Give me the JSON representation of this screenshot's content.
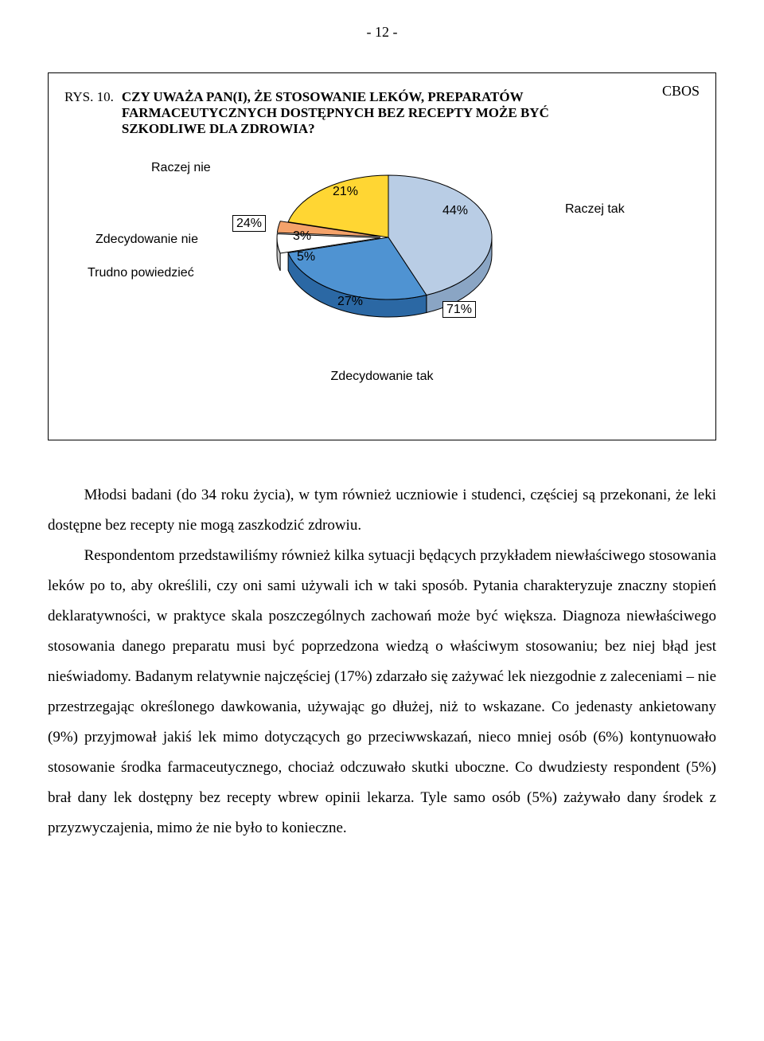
{
  "page_number": "- 12 -",
  "cbos": "CBOS",
  "figure": {
    "prefix": "RYS. 10.",
    "title": "CZY UWAŻA PAN(I), ŻE STOSOWANIE LEKÓW, PREPARATÓW FARMACEUTYCZNYCH DOSTĘPNYCH BEZ RECEPTY MOŻE BYĆ SZKODLIWE DLA ZDROWIA?"
  },
  "pie": {
    "type": "pie",
    "slices": [
      {
        "label": "Raczej tak",
        "value": 44,
        "pct": "44%",
        "color": "#b9cde5",
        "side_color": "#8aa5c4"
      },
      {
        "label": "Zdecydowanie tak",
        "value": 27,
        "pct": "27%",
        "color": "#4f93d2",
        "side_color": "#2b68a4"
      },
      {
        "label": "Trudno powiedzieć",
        "value": 5,
        "pct": "5%",
        "color": "#ffffff",
        "side_color": "#c8c8c8"
      },
      {
        "label": "Zdecydowanie nie",
        "value": 3,
        "pct": "3%",
        "color": "#f4a26a",
        "side_color": "#c47a4a"
      },
      {
        "label": "Raczej nie",
        "value": 21,
        "pct": "21%",
        "color": "#ffd633",
        "side_color": "#c9a31a"
      }
    ],
    "group_tak": "71%",
    "group_nie": "24%",
    "labels": {
      "raczej_nie": "Raczej nie",
      "zdec_nie": "Zdecydowanie nie",
      "trudno": "Trudno powiedzieć",
      "raczej_tak": "Raczej tak",
      "zdec_tak": "Zdecydowanie tak"
    },
    "radius": 130,
    "depth": 22,
    "squash": 0.6,
    "stroke": "#000000",
    "stroke_width": 1
  },
  "body": {
    "p1": "Młodsi badani (do 34 roku życia), w tym również uczniowie i studenci, częściej  są przekonani, że leki dostępne bez recepty nie mogą zaszkodzić zdrowiu.",
    "p2": "Respondentom przedstawiliśmy również kilka sytuacji będących przykładem niewłaściwego stosowania leków po to, aby określili, czy oni sami używali ich w taki sposób. Pytania charakteryzuje znaczny stopień deklaratywności, w praktyce skala poszczególnych zachowań może być większa. Diagnoza niewłaściwego stosowania danego preparatu musi być poprzedzona wiedzą o właściwym stosowaniu; bez niej błąd jest nieświadomy. Badanym relatywnie najczęściej (17%) zdarzało się zażywać lek niezgodnie z zaleceniami – nie przestrzegając określonego dawkowania, używając go dłużej, niż to wskazane. Co jedenasty ankietowany (9%) przyjmował jakiś lek mimo dotyczących go przeciwwskazań, nieco mniej osób (6%) kontynuowało stosowanie środka farmaceutycznego, chociaż odczuwało skutki uboczne. Co dwudziesty respondent (5%) brał dany lek dostępny bez recepty wbrew opinii lekarza. Tyle samo osób (5%) zażywało dany środek z przyzwyczajenia, mimo że nie było to konieczne."
  }
}
